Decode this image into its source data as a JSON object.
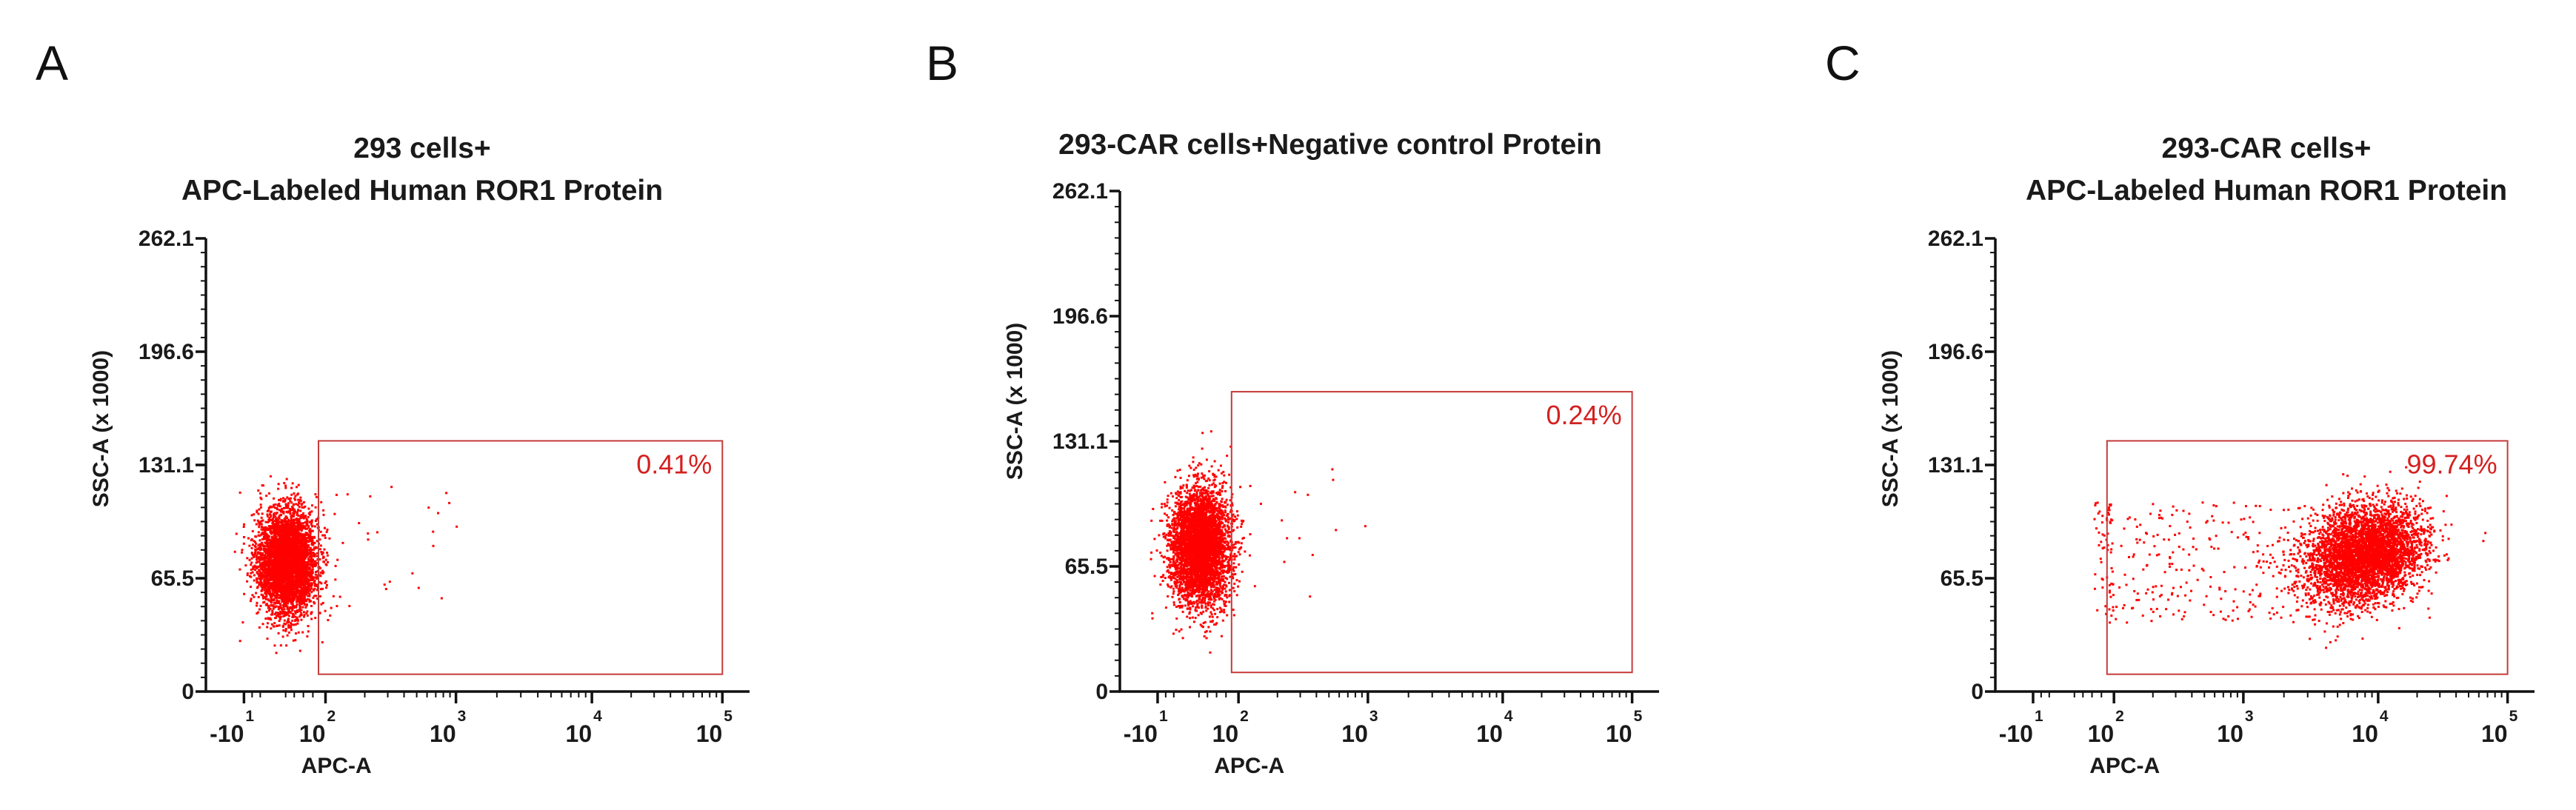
{
  "chart_data": [
    {
      "panel": "A",
      "type": "scatter",
      "title": [
        "293 cells+",
        "APC-Labeled Human ROR1 Protein"
      ],
      "xlabel": "APC-A",
      "ylabel": "SSC-A (x 1000)",
      "x_scale": "biexponential",
      "x_ticks": [
        {
          "base": "-10",
          "exp": "1",
          "value": -10
        },
        {
          "base": "10",
          "exp": "2",
          "value": 100
        },
        {
          "base": "10",
          "exp": "3",
          "value": 1000
        },
        {
          "base": "10",
          "exp": "4",
          "value": 10000
        },
        {
          "base": "10",
          "exp": "5",
          "value": 100000
        }
      ],
      "y_ticks": [
        "0",
        "65.5",
        "131.1",
        "196.6",
        "262.1"
      ],
      "ylim": [
        0,
        262.1
      ],
      "gate": {
        "label": "0.41%",
        "x_range": [
          60,
          100000
        ],
        "y_range": [
          10,
          145
        ]
      },
      "populations": [
        {
          "center_x": 5,
          "center_y": 76,
          "count": 4200,
          "note": "main cluster"
        },
        {
          "center_x": 600,
          "center_y": 85,
          "count": 24,
          "note": "sparse events inside gate"
        }
      ],
      "color": "#ff0000"
    },
    {
      "panel": "B",
      "type": "scatter",
      "title": [
        "293-CAR cells+Negative control Protein"
      ],
      "xlabel": "APC-A",
      "ylabel": "SSC-A (x 1000)",
      "x_scale": "biexponential",
      "x_ticks": [
        {
          "base": "-10",
          "exp": "1",
          "value": -10
        },
        {
          "base": "10",
          "exp": "2",
          "value": 100
        },
        {
          "base": "10",
          "exp": "3",
          "value": 1000
        },
        {
          "base": "10",
          "exp": "4",
          "value": 10000
        },
        {
          "base": "10",
          "exp": "5",
          "value": 100000
        }
      ],
      "y_ticks": [
        "0",
        "65.5",
        "131.1",
        "196.6",
        "262.1"
      ],
      "ylim": [
        0,
        262.1
      ],
      "gate": {
        "label": "0.24%",
        "x_range": [
          60,
          100000
        ],
        "y_range": [
          10,
          157
        ]
      },
      "populations": [
        {
          "center_x": 5,
          "center_y": 76,
          "count": 4200,
          "note": "main cluster"
        },
        {
          "center_x": 400,
          "center_y": 85,
          "count": 16,
          "note": "sparse events inside gate"
        }
      ],
      "color": "#ff0000"
    },
    {
      "panel": "C",
      "type": "scatter",
      "title": [
        "293-CAR cells+",
        "APC-Labeled Human ROR1 Protein"
      ],
      "xlabel": "APC-A",
      "ylabel": "SSC-A (x 1000)",
      "x_scale": "biexponential",
      "x_ticks": [
        {
          "base": "-10",
          "exp": "1",
          "value": -10
        },
        {
          "base": "10",
          "exp": "2",
          "value": 100
        },
        {
          "base": "10",
          "exp": "3",
          "value": 1000
        },
        {
          "base": "10",
          "exp": "4",
          "value": 10000
        },
        {
          "base": "10",
          "exp": "5",
          "value": 100000
        }
      ],
      "y_ticks": [
        "0",
        "65.5",
        "131.1",
        "196.6",
        "262.1"
      ],
      "ylim": [
        0,
        262.1
      ],
      "gate": {
        "label": "99.74%",
        "x_range": [
          60,
          100000
        ],
        "y_range": [
          10,
          145
        ]
      },
      "populations": [
        {
          "center_x": 8000,
          "center_y": 80,
          "count": 4200,
          "note": "main cluster"
        },
        {
          "center_x": 600,
          "center_y": 75,
          "count": 380,
          "note": "scattered events across gate"
        }
      ],
      "color": "#ff0000"
    }
  ]
}
